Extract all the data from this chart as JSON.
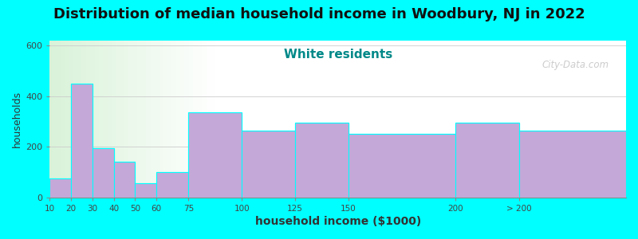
{
  "title": "Distribution of median household income in Woodbury, NJ in 2022",
  "subtitle": "White residents",
  "xlabel": "household income ($1000)",
  "ylabel": "households",
  "background_color": "#00FFFF",
  "bar_color": "#C4A8D8",
  "bar_edge_color": "#00FFFF",
  "categories": [
    "10",
    "20",
    "30",
    "40",
    "50",
    "60",
    "75",
    "100",
    "125",
    "150",
    "200",
    "> 200"
  ],
  "bin_edges": [
    10,
    20,
    30,
    40,
    50,
    60,
    75,
    100,
    125,
    150,
    200,
    230,
    280
  ],
  "values": [
    75,
    450,
    195,
    140,
    55,
    100,
    335,
    265,
    295,
    250,
    295,
    265
  ],
  "ylim": [
    0,
    620
  ],
  "yticks": [
    0,
    200,
    400,
    600
  ],
  "title_fontsize": 13,
  "subtitle_fontsize": 11,
  "subtitle_color": "#008888",
  "watermark": "City-Data.com"
}
